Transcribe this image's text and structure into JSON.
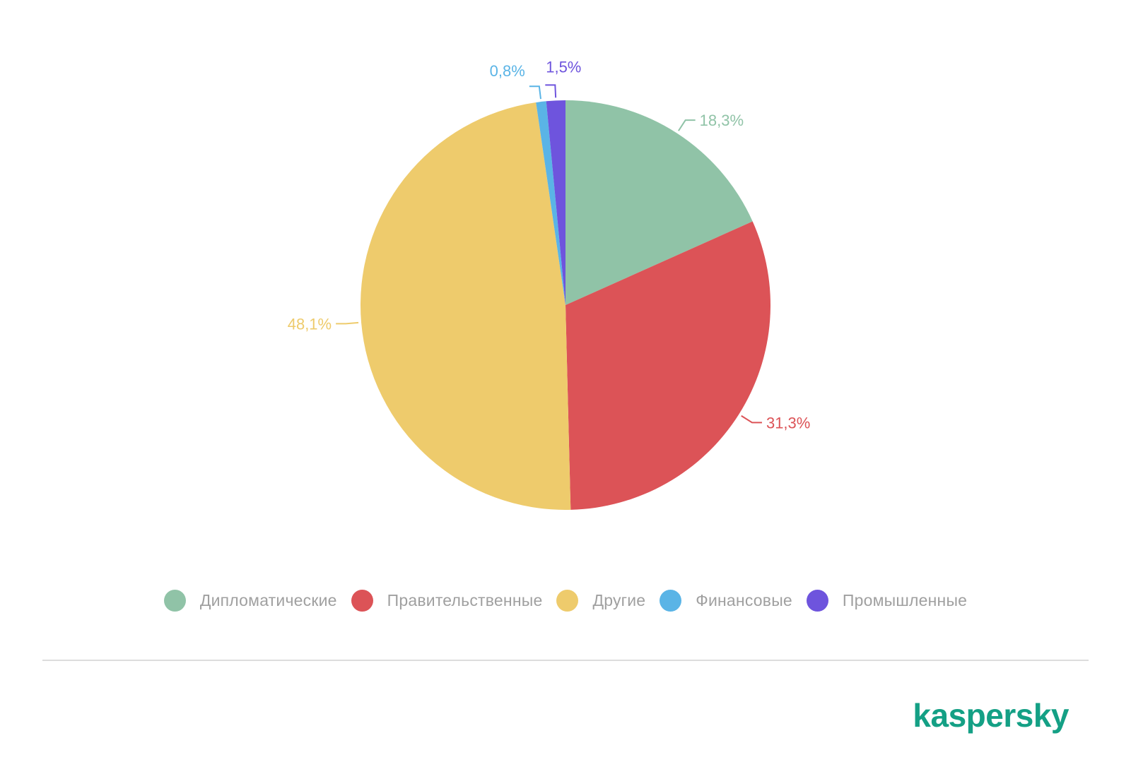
{
  "chart_data": {
    "type": "pie",
    "title": "",
    "slices": [
      {
        "label": "Дипломатические",
        "value": 18.3,
        "display": "18,3%",
        "color": "#90c3a7"
      },
      {
        "label": "Правительственные",
        "value": 31.3,
        "display": "31,3%",
        "color": "#dc5357"
      },
      {
        "label": "Другие",
        "value": 48.1,
        "display": "48,1%",
        "color": "#eecb6c"
      },
      {
        "label": "Финансовые",
        "value": 0.8,
        "display": "0,8%",
        "color": "#5ab4e6"
      },
      {
        "label": "Промышленные",
        "value": 1.5,
        "display": "1,5%",
        "color": "#6e54dd"
      }
    ],
    "start_angle": "12 o'clock",
    "direction": "clockwise",
    "legend_position": "bottom"
  },
  "brand": {
    "logo_text": "kaspersky",
    "color": "#14a085"
  }
}
